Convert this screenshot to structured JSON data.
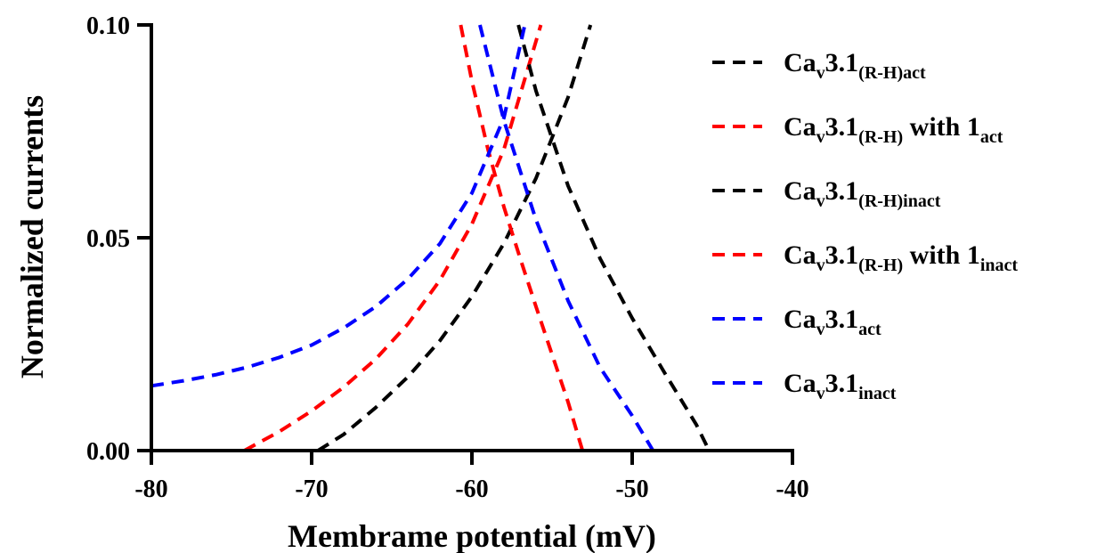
{
  "chart_data": {
    "type": "line",
    "title": "",
    "xlabel": "Membrame potential (mV)",
    "ylabel": "Normalized currents",
    "xlim": [
      -80,
      -40
    ],
    "ylim": [
      0,
      0.1
    ],
    "x_ticks": [
      -80,
      -70,
      -60,
      -50,
      -40
    ],
    "x_tick_labels": [
      "-80",
      "-70",
      "-60",
      "-50",
      "-40"
    ],
    "y_ticks": [
      0,
      0.05,
      0.1
    ],
    "y_tick_labels": [
      "0.00",
      "0.05",
      "0.10"
    ],
    "grid": false,
    "legend_position": "right",
    "series": [
      {
        "name_base": "Ca",
        "name_sub": "v",
        "name_mid": "3.1",
        "name_sub2": "(R-H)act",
        "name_tail": "",
        "color": "#000000",
        "line_style": "dashed",
        "x": [
          -69.6,
          -68,
          -66,
          -64,
          -62,
          -60,
          -58,
          -56,
          -54,
          -52.6
        ],
        "y": [
          0.0,
          0.0038,
          0.0101,
          0.0173,
          0.0258,
          0.0362,
          0.0487,
          0.064,
          0.083,
          0.1
        ]
      },
      {
        "name_base": "Ca",
        "name_sub": "v",
        "name_mid": "3.1",
        "name_sub2": "(R-H)",
        "name_tail": " with 1",
        "name_sub3": "act",
        "color": "#ff0000",
        "line_style": "dashed",
        "x": [
          -74.2,
          -72,
          -70,
          -68,
          -66,
          -64,
          -62,
          -60,
          -58,
          -55.7
        ],
        "y": [
          0.0,
          0.0045,
          0.0093,
          0.0149,
          0.0215,
          0.0297,
          0.04,
          0.0532,
          0.0708,
          0.1
        ]
      },
      {
        "name_base": "Ca",
        "name_sub": "v",
        "name_mid": "3.1",
        "name_sub2": "(R-H)inact",
        "name_tail": "",
        "color": "#000000",
        "line_style": "dashed",
        "x": [
          -57.1,
          -56,
          -54,
          -52,
          -50,
          -48,
          -46,
          -45.2
        ],
        "y": [
          0.1,
          0.0845,
          0.0622,
          0.0451,
          0.0311,
          0.0184,
          0.0061,
          0.0
        ]
      },
      {
        "name_base": "Ca",
        "name_sub": "v",
        "name_mid": "3.1",
        "name_sub2": "(R-H)",
        "name_tail": " with 1",
        "name_sub3": "inact",
        "color": "#ff0000",
        "line_style": "dashed",
        "x": [
          -60.7,
          -60,
          -59,
          -58,
          -57,
          -56,
          -55,
          -54,
          -53.1
        ],
        "y": [
          0.1,
          0.0868,
          0.0708,
          0.0572,
          0.0453,
          0.0338,
          0.0226,
          0.0114,
          0.0
        ]
      },
      {
        "name_base": "Ca",
        "name_sub": "v",
        "name_mid": "3.1",
        "name_sub2": "act",
        "name_tail": "",
        "color": "#0000ff",
        "line_style": "dashed",
        "x": [
          -80,
          -78,
          -76,
          -74,
          -72,
          -70,
          -68,
          -66,
          -64,
          -62,
          -60,
          -58,
          -56.7
        ],
        "y": [
          0.0152,
          0.0164,
          0.0178,
          0.0196,
          0.0219,
          0.0248,
          0.0288,
          0.0338,
          0.0403,
          0.0486,
          0.0605,
          0.0782,
          0.1
        ]
      },
      {
        "name_base": "Ca",
        "name_sub": "v",
        "name_mid": "3.1",
        "name_sub2": "inact",
        "name_tail": "",
        "color": "#0000ff",
        "line_style": "dashed",
        "x": [
          -59.5,
          -58,
          -56,
          -54,
          -52,
          -50,
          -48.7
        ],
        "y": [
          0.1,
          0.0775,
          0.0542,
          0.0352,
          0.0195,
          0.0082,
          0.0
        ]
      }
    ]
  }
}
